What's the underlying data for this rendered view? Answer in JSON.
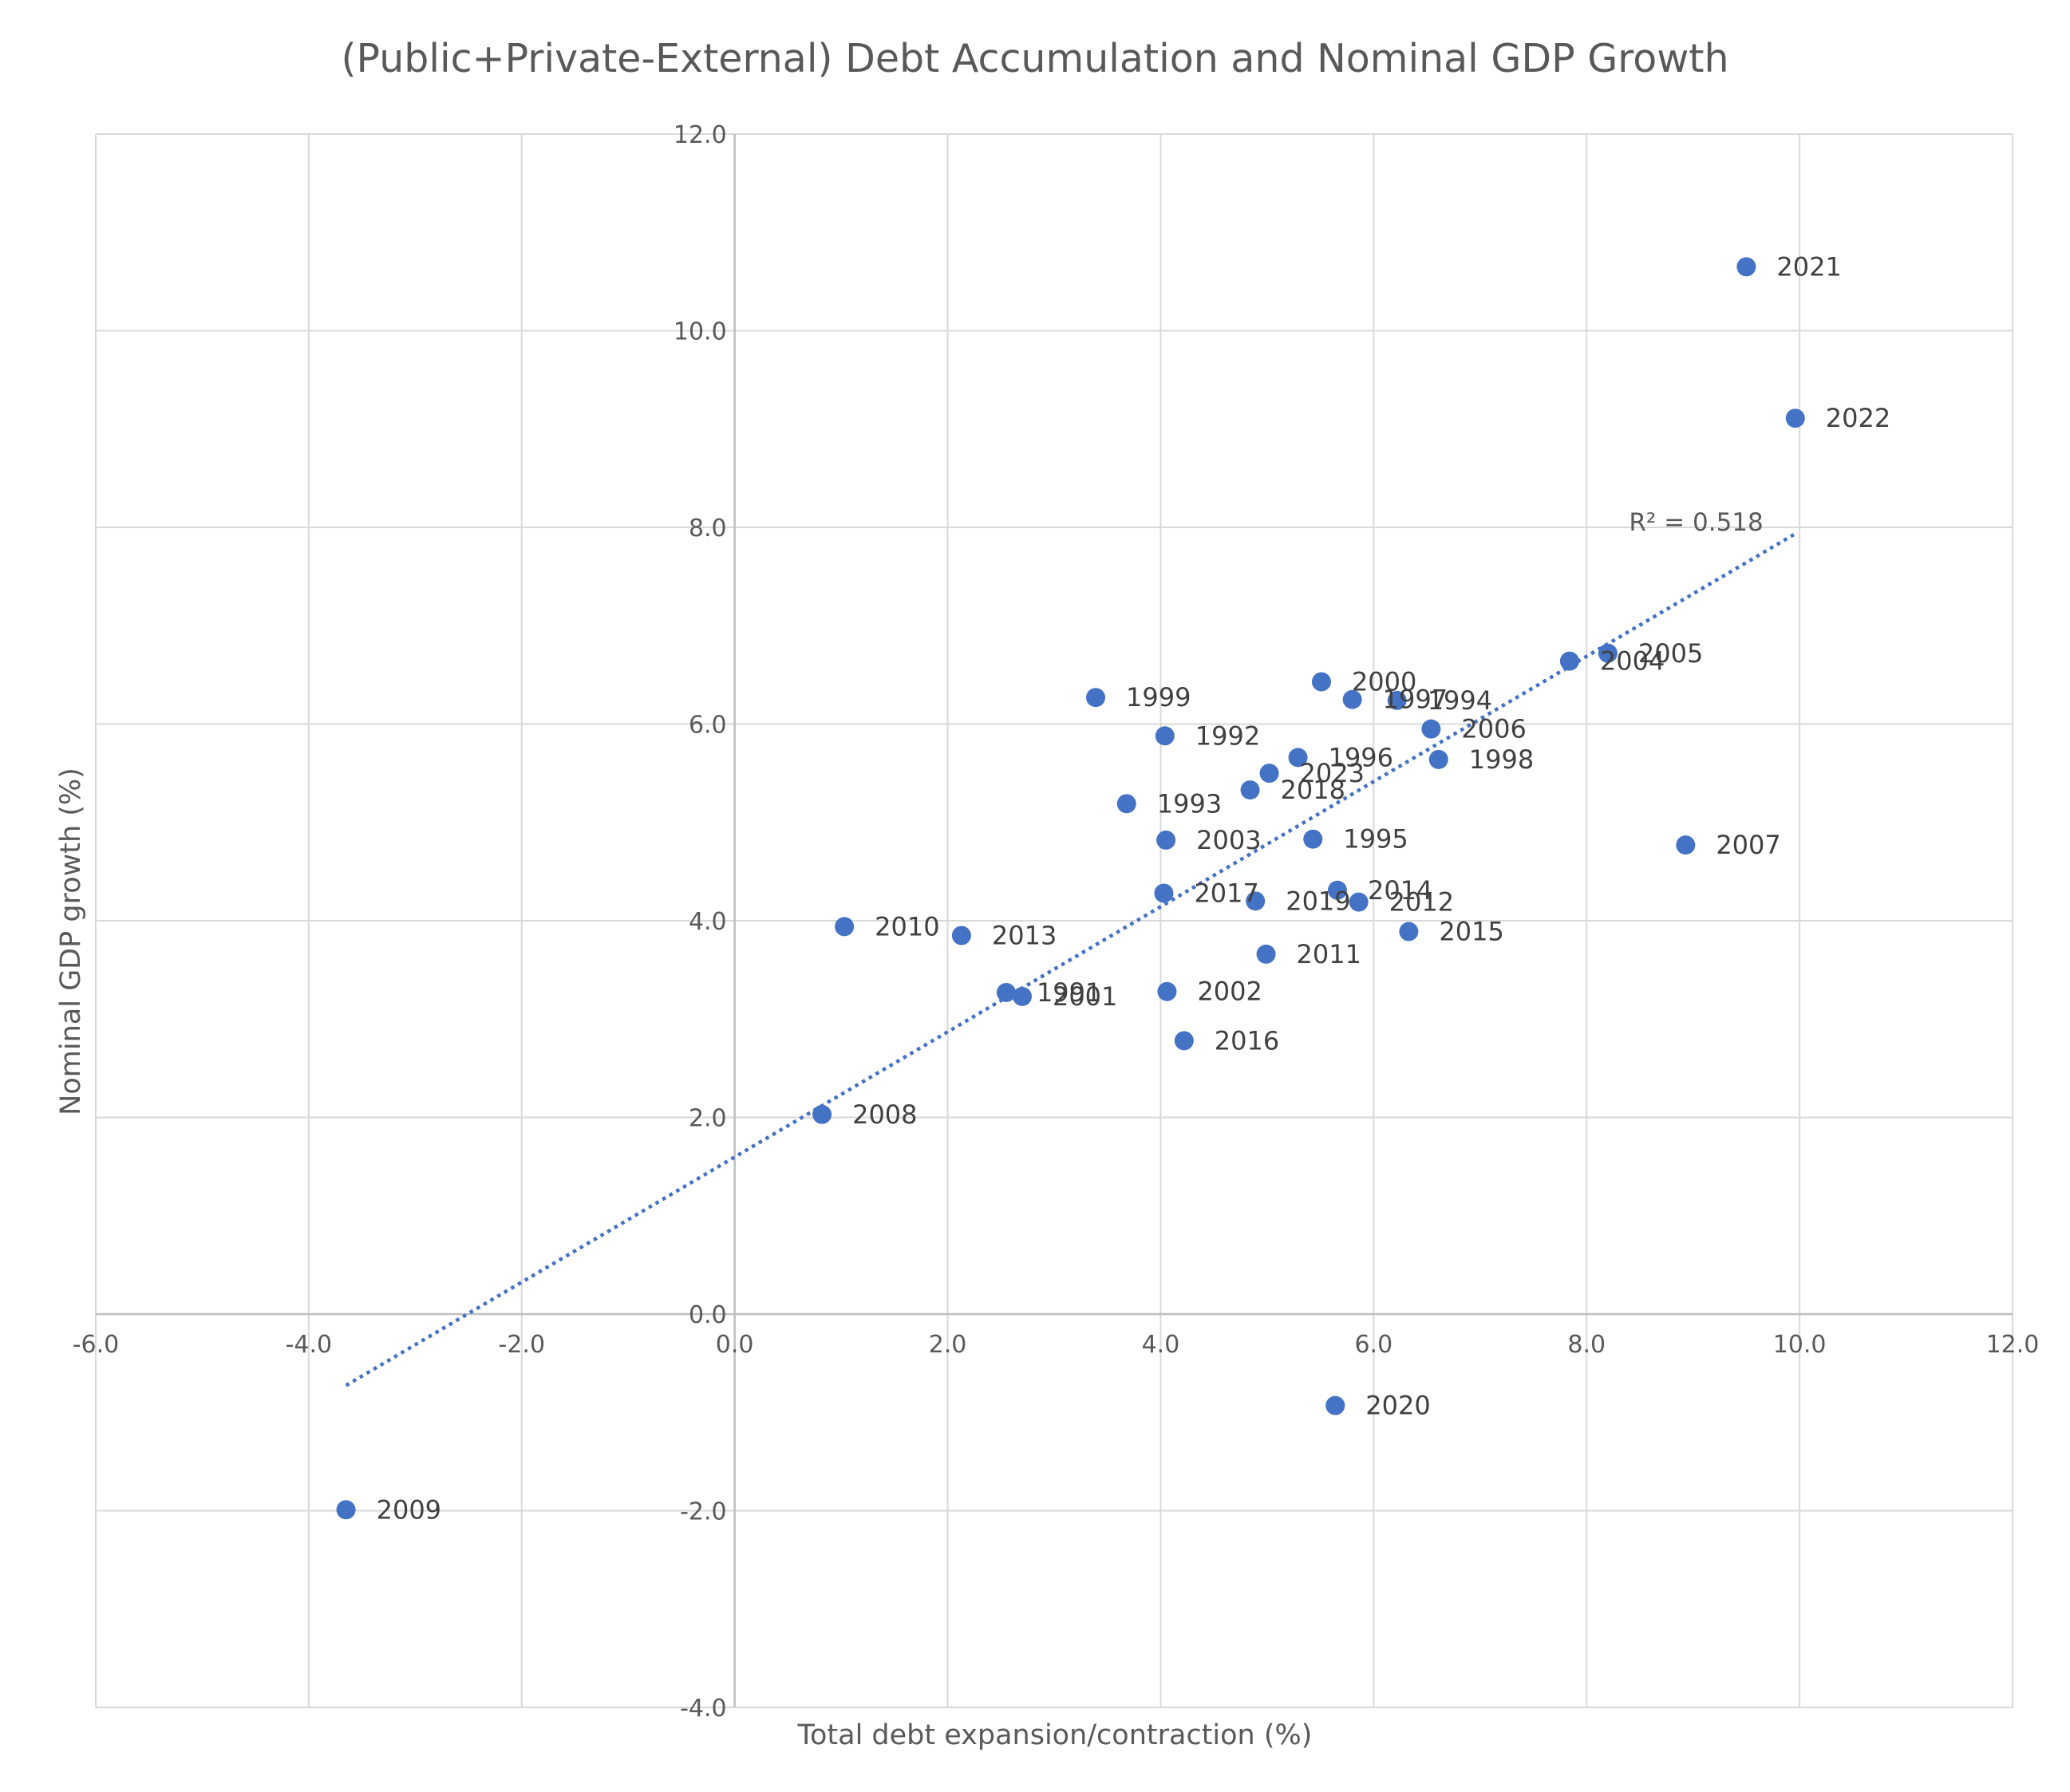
{
  "colors": {
    "marker": "#4472C4",
    "trendline": "#4472C4",
    "grid": "#d9d9d9",
    "text": "#595959"
  },
  "chart_data": {
    "type": "scatter",
    "title": "(Public+Private-External) Debt Accumulation and Nominal GDP Growth",
    "xlabel": "Total debt expansion/contraction (%)",
    "ylabel": "Nominal GDP growth (%)",
    "xlim": [
      -6,
      12
    ],
    "ylim": [
      -4,
      12
    ],
    "xticks": [
      "-6.0",
      "-4.0",
      "-2.0",
      "0.0",
      "2.0",
      "4.0",
      "6.0",
      "8.0",
      "10.0",
      "12.0"
    ],
    "yticks": [
      "-4.0",
      "-2.0",
      "0.0",
      "2.0",
      "4.0",
      "6.0",
      "8.0",
      "10.0",
      "12.0"
    ],
    "grid": true,
    "points": [
      {
        "label": "1991",
        "x": 2.55,
        "y": 3.27
      },
      {
        "label": "1992",
        "x": 4.04,
        "y": 5.88
      },
      {
        "label": "1993",
        "x": 3.68,
        "y": 5.19
      },
      {
        "label": "1994",
        "x": 6.22,
        "y": 6.24
      },
      {
        "label": "1995",
        "x": 5.43,
        "y": 4.83
      },
      {
        "label": "1996",
        "x": 5.29,
        "y": 5.66
      },
      {
        "label": "1997",
        "x": 5.8,
        "y": 6.25
      },
      {
        "label": "1998",
        "x": 6.61,
        "y": 5.64
      },
      {
        "label": "1999",
        "x": 3.39,
        "y": 6.27
      },
      {
        "label": "2000",
        "x": 5.51,
        "y": 6.43
      },
      {
        "label": "2001",
        "x": 2.7,
        "y": 3.23
      },
      {
        "label": "2002",
        "x": 4.06,
        "y": 3.28
      },
      {
        "label": "2003",
        "x": 4.05,
        "y": 4.82
      },
      {
        "label": "2004",
        "x": 7.84,
        "y": 6.64
      },
      {
        "label": "2005",
        "x": 8.2,
        "y": 6.72
      },
      {
        "label": "2006",
        "x": 6.54,
        "y": 5.95
      },
      {
        "label": "2007",
        "x": 8.93,
        "y": 4.77
      },
      {
        "label": "2008",
        "x": 0.82,
        "y": 2.03
      },
      {
        "label": "2009",
        "x": -3.65,
        "y": -1.99
      },
      {
        "label": "2010",
        "x": 1.03,
        "y": 3.94
      },
      {
        "label": "2011",
        "x": 4.99,
        "y": 3.66
      },
      {
        "label": "2012",
        "x": 5.86,
        "y": 4.19
      },
      {
        "label": "2013",
        "x": 2.13,
        "y": 3.85
      },
      {
        "label": "2014",
        "x": 5.66,
        "y": 4.31
      },
      {
        "label": "2015",
        "x": 6.33,
        "y": 3.89
      },
      {
        "label": "2016",
        "x": 4.22,
        "y": 2.78
      },
      {
        "label": "2017",
        "x": 4.03,
        "y": 4.28
      },
      {
        "label": "2018",
        "x": 4.84,
        "y": 5.33
      },
      {
        "label": "2019",
        "x": 4.89,
        "y": 4.2
      },
      {
        "label": "2020",
        "x": 5.64,
        "y": -0.93
      },
      {
        "label": "2021",
        "x": 9.5,
        "y": 10.65
      },
      {
        "label": "2022",
        "x": 9.96,
        "y": 9.11
      },
      {
        "label": "2023",
        "x": 5.02,
        "y": 5.5
      }
    ],
    "trendline": {
      "type": "linear",
      "x_range": [
        -3.65,
        9.96
      ],
      "r2_label": "R² = 0.518"
    }
  }
}
